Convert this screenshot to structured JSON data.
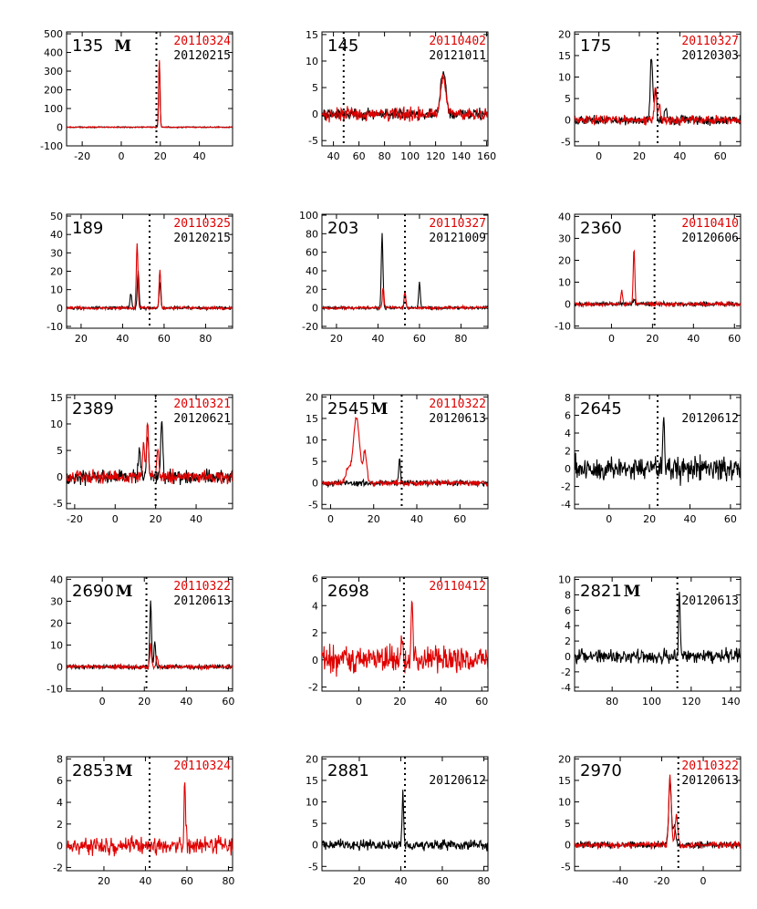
{
  "colors": {
    "first": "#e00000",
    "second": "#000000"
  },
  "chart_data": [
    {
      "type": "line",
      "id": "135",
      "flag": "M",
      "dates": [
        {
          "text": "20110324",
          "color": "red"
        },
        {
          "text": "20120215",
          "color": "black"
        }
      ],
      "xlim": [
        -28,
        57
      ],
      "ylim": [
        -100,
        510
      ],
      "xticks": [
        -20,
        0,
        20,
        40
      ],
      "yticks": [
        -100,
        0,
        100,
        200,
        300,
        400,
        500
      ],
      "vline": 18,
      "series": [
        {
          "color": "black",
          "noise": 2,
          "peaks": [
            [
              19.5,
              350,
              0.35
            ]
          ]
        },
        {
          "color": "red",
          "noise": 2,
          "peaks": [
            [
              19.5,
              360,
              0.35
            ]
          ]
        }
      ]
    },
    {
      "type": "line",
      "id": "145",
      "flag": "",
      "dates": [
        {
          "text": "20110402",
          "color": "red"
        },
        {
          "text": "20121011",
          "color": "black"
        }
      ],
      "xlim": [
        31,
        161
      ],
      "ylim": [
        -6,
        15.5
      ],
      "xticks": [
        40,
        60,
        80,
        100,
        120,
        140,
        160
      ],
      "yticks": [
        -5,
        0,
        5,
        10,
        15
      ],
      "vline": 48,
      "series": [
        {
          "color": "black",
          "noise": 0.8,
          "peaks": [
            [
              126,
              7.8,
              2.0
            ]
          ]
        },
        {
          "color": "red",
          "noise": 0.9,
          "peaks": [
            [
              126,
              6.8,
              2.0
            ]
          ]
        }
      ]
    },
    {
      "type": "line",
      "id": "175",
      "flag": "",
      "dates": [
        {
          "text": "20110327",
          "color": "red"
        },
        {
          "text": "20120303",
          "color": "black"
        }
      ],
      "xlim": [
        -12,
        70
      ],
      "ylim": [
        -6,
        20.5
      ],
      "xticks": [
        0,
        20,
        40,
        60
      ],
      "yticks": [
        -5,
        0,
        5,
        10,
        15,
        20
      ],
      "vline": 29,
      "series": [
        {
          "color": "black",
          "noise": 0.8,
          "peaks": [
            [
              26,
              15,
              0.6
            ],
            [
              28,
              7,
              0.5
            ],
            [
              33,
              3.5,
              0.5
            ]
          ]
        },
        {
          "color": "red",
          "noise": 0.8,
          "peaks": [
            [
              28,
              7.5,
              0.6
            ],
            [
              30,
              3,
              0.5
            ]
          ]
        }
      ]
    },
    {
      "type": "line",
      "id": "189",
      "flag": "",
      "dates": [
        {
          "text": "20110325",
          "color": "red"
        },
        {
          "text": "20120215",
          "color": "black"
        }
      ],
      "xlim": [
        13,
        93
      ],
      "ylim": [
        -11,
        51
      ],
      "xticks": [
        20,
        40,
        60,
        80
      ],
      "yticks": [
        -10,
        0,
        10,
        20,
        30,
        40,
        50
      ],
      "vline": 53,
      "series": [
        {
          "color": "black",
          "noise": 0.6,
          "peaks": [
            [
              44,
              8,
              0.4
            ],
            [
              47.5,
              20,
              0.4
            ],
            [
              58,
              14,
              0.4
            ]
          ]
        },
        {
          "color": "red",
          "noise": 0.6,
          "peaks": [
            [
              47,
              35,
              0.4
            ],
            [
              58,
              21,
              0.4
            ]
          ]
        }
      ]
    },
    {
      "type": "line",
      "id": "203",
      "flag": "",
      "dates": [
        {
          "text": "20110327",
          "color": "red"
        },
        {
          "text": "20121009",
          "color": "black"
        }
      ],
      "xlim": [
        13,
        93
      ],
      "ylim": [
        -22,
        101
      ],
      "xticks": [
        20,
        40,
        60,
        80
      ],
      "yticks": [
        -20,
        0,
        20,
        40,
        60,
        80,
        100
      ],
      "vline": 53,
      "series": [
        {
          "color": "black",
          "noise": 1.2,
          "peaks": [
            [
              42,
              80,
              0.4
            ],
            [
              53,
              16,
              0.4
            ],
            [
              60,
              27,
              0.4
            ]
          ]
        },
        {
          "color": "red",
          "noise": 1.2,
          "peaks": [
            [
              42.5,
              22,
              0.4
            ],
            [
              53,
              18,
              0.4
            ]
          ]
        }
      ]
    },
    {
      "type": "line",
      "id": "2360",
      "flag": "",
      "dates": [
        {
          "text": "20110410",
          "color": "red"
        },
        {
          "text": "20120606",
          "color": "black"
        }
      ],
      "xlim": [
        -18,
        63
      ],
      "ylim": [
        -11,
        41
      ],
      "xticks": [
        0,
        20,
        40,
        60
      ],
      "yticks": [
        -10,
        0,
        10,
        20,
        30,
        40
      ],
      "vline": 21,
      "series": [
        {
          "color": "black",
          "noise": 0.7,
          "peaks": [
            [
              11,
              2,
              0.5
            ]
          ]
        },
        {
          "color": "red",
          "noise": 0.7,
          "peaks": [
            [
              11,
              25,
              0.4
            ],
            [
              5,
              6,
              0.4
            ]
          ]
        }
      ]
    },
    {
      "type": "line",
      "id": "2389",
      "flag": "",
      "dates": [
        {
          "text": "20110321",
          "color": "red"
        },
        {
          "text": "20120621",
          "color": "black"
        }
      ],
      "xlim": [
        -24,
        58
      ],
      "ylim": [
        -6,
        15.5
      ],
      "xticks": [
        -20,
        0,
        20,
        40
      ],
      "yticks": [
        -5,
        0,
        5,
        10,
        15
      ],
      "vline": 20,
      "series": [
        {
          "color": "black",
          "noise": 0.9,
          "peaks": [
            [
              12,
              6,
              0.5
            ],
            [
              16,
              8,
              0.5
            ],
            [
              23,
              11,
              0.5
            ]
          ]
        },
        {
          "color": "red",
          "noise": 0.9,
          "peaks": [
            [
              14,
              6,
              0.5
            ],
            [
              16,
              10,
              0.5
            ],
            [
              21,
              5,
              0.5
            ]
          ]
        }
      ]
    },
    {
      "type": "line",
      "id": "2545",
      "flag": "M",
      "dates": [
        {
          "text": "20110322",
          "color": "red"
        },
        {
          "text": "20120613",
          "color": "black"
        }
      ],
      "xlim": [
        -4,
        73
      ],
      "ylim": [
        -6,
        20.5
      ],
      "xticks": [
        0,
        20,
        40,
        60
      ],
      "yticks": [
        -5,
        0,
        5,
        10,
        15,
        20
      ],
      "vline": 33,
      "series": [
        {
          "color": "black",
          "noise": 0.5,
          "peaks": [
            [
              32,
              5.5,
              0.4
            ]
          ]
        },
        {
          "color": "red",
          "noise": 0.5,
          "peaks": [
            [
              12,
              15,
              1.5
            ],
            [
              16,
              7,
              0.8
            ],
            [
              8,
              3,
              1.0
            ]
          ]
        }
      ]
    },
    {
      "type": "line",
      "id": "2645",
      "flag": "",
      "dates": [
        {
          "text": "",
          "color": "red"
        },
        {
          "text": "20120612",
          "color": "black"
        }
      ],
      "xlim": [
        -17,
        65
      ],
      "ylim": [
        -4.5,
        8.3
      ],
      "xticks": [
        0,
        20,
        40,
        60
      ],
      "yticks": [
        -4,
        -2,
        0,
        2,
        4,
        6,
        8
      ],
      "vline": 24,
      "series": [
        {
          "color": "black",
          "noise": 1.1,
          "peaks": [
            [
              27,
              6,
              0.4
            ]
          ]
        }
      ]
    },
    {
      "type": "line",
      "id": "2690",
      "flag": "M",
      "dates": [
        {
          "text": "20110322",
          "color": "red"
        },
        {
          "text": "20120613",
          "color": "black"
        }
      ],
      "xlim": [
        -17,
        62
      ],
      "ylim": [
        -11,
        41
      ],
      "xticks": [
        0,
        20,
        40,
        60
      ],
      "yticks": [
        -10,
        0,
        10,
        20,
        30,
        40
      ],
      "vline": 21,
      "series": [
        {
          "color": "black",
          "noise": 0.7,
          "peaks": [
            [
              23,
              30,
              0.4
            ],
            [
              25,
              12,
              0.4
            ]
          ]
        },
        {
          "color": "red",
          "noise": 0.7,
          "peaks": [
            [
              23,
              10,
              0.4
            ],
            [
              26,
              5,
              0.4
            ]
          ]
        }
      ]
    },
    {
      "type": "line",
      "id": "2698",
      "flag": "",
      "dates": [
        {
          "text": "20110412",
          "color": "red"
        }
      ],
      "xlim": [
        -18,
        63
      ],
      "ylim": [
        -2.3,
        6.1
      ],
      "xticks": [
        0,
        20,
        40,
        60
      ],
      "yticks": [
        -2,
        0,
        2,
        4,
        6
      ],
      "vline": 22,
      "series": [
        {
          "color": "red",
          "noise": 0.7,
          "peaks": [
            [
              26,
              4.3,
              0.4
            ],
            [
              21,
              2,
              0.4
            ]
          ]
        }
      ]
    },
    {
      "type": "line",
      "id": "2821",
      "flag": "M",
      "dates": [
        {
          "text": "",
          "color": "red"
        },
        {
          "text": "20120613",
          "color": "black"
        }
      ],
      "xlim": [
        61,
        145
      ],
      "ylim": [
        -4.5,
        10.3
      ],
      "xticks": [
        80,
        100,
        120,
        140
      ],
      "yticks": [
        -4,
        -2,
        0,
        2,
        4,
        6,
        8,
        10
      ],
      "vline": 113,
      "series": [
        {
          "color": "black",
          "noise": 0.7,
          "peaks": [
            [
              114,
              8,
              0.4
            ]
          ]
        }
      ]
    },
    {
      "type": "line",
      "id": "2853",
      "flag": "M",
      "dates": [
        {
          "text": "20110324",
          "color": "red"
        }
      ],
      "xlim": [
        2,
        82
      ],
      "ylim": [
        -2.3,
        8.2
      ],
      "xticks": [
        20,
        40,
        60,
        80
      ],
      "yticks": [
        -2,
        0,
        2,
        4,
        6,
        8
      ],
      "vline": 42,
      "series": [
        {
          "color": "red",
          "noise": 0.6,
          "peaks": [
            [
              59,
              5.3,
              0.4
            ]
          ]
        }
      ]
    },
    {
      "type": "line",
      "id": "2881",
      "flag": "",
      "dates": [
        {
          "text": "",
          "color": "red"
        },
        {
          "text": "20120612",
          "color": "black"
        }
      ],
      "xlim": [
        2,
        82
      ],
      "ylim": [
        -6,
        20.5
      ],
      "xticks": [
        20,
        40,
        60,
        80
      ],
      "yticks": [
        -5,
        0,
        5,
        10,
        15,
        20
      ],
      "vline": 42,
      "series": [
        {
          "color": "black",
          "noise": 0.9,
          "peaks": [
            [
              41,
              12.5,
              0.4
            ]
          ]
        }
      ]
    },
    {
      "type": "line",
      "id": "2970",
      "flag": "",
      "dates": [
        {
          "text": "20110322",
          "color": "red"
        },
        {
          "text": "20120613",
          "color": "black"
        }
      ],
      "xlim": [
        -62,
        18
      ],
      "ylim": [
        -6,
        20.5
      ],
      "xticks": [
        -40,
        -20,
        0
      ],
      "yticks": [
        -5,
        0,
        5,
        10,
        15,
        20
      ],
      "vline": -12,
      "series": [
        {
          "color": "black",
          "noise": 0.6,
          "peaks": [
            [
              -16,
              15,
              0.6
            ],
            [
              -14,
              5,
              0.6
            ]
          ]
        },
        {
          "color": "red",
          "noise": 0.6,
          "peaks": [
            [
              -16,
              16,
              0.6
            ],
            [
              -13,
              7,
              0.6
            ]
          ]
        }
      ]
    }
  ]
}
